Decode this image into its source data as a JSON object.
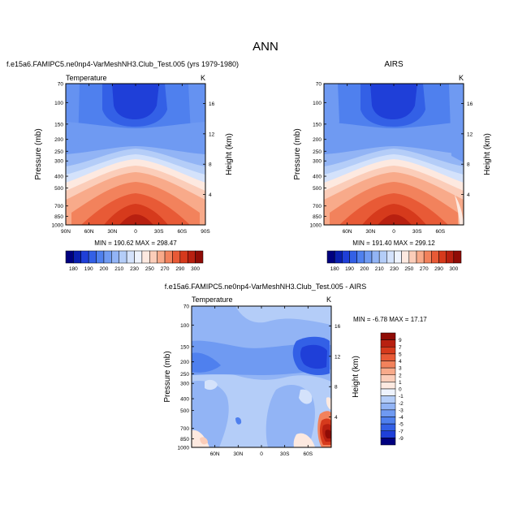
{
  "figure": {
    "title": "ANN"
  },
  "chart_data": [
    {
      "type": "heatmap",
      "title": "f.e15a6.FAMIPC5.ne0np4-VarMeshNH3.Club_Test.005 (yrs 1979-1980)",
      "left_label": "Temperature",
      "right_label": "K",
      "ylabel": "Pressure (mb)",
      "ylabel_right": "Height (km)",
      "x_ticks": [
        "90N",
        "60N",
        "30N",
        "0",
        "30S",
        "60S",
        "90S"
      ],
      "y_ticks": [
        "70",
        "100",
        "150",
        "200",
        "250",
        "300",
        "400",
        "500",
        "700",
        "850",
        "1000"
      ],
      "y_ticks_right": [
        "16",
        "12",
        "8",
        "4"
      ],
      "stats": "MIN = 190.62  MAX = 298.47",
      "min": 190.62,
      "max": 298.47
    },
    {
      "type": "heatmap",
      "title": "AIRS",
      "left_label": "",
      "right_label": "K",
      "ylabel": "Pressure (mb)",
      "ylabel_right": "Height (km)",
      "x_ticks": [
        "60N",
        "30N",
        "0",
        "30S",
        "60S"
      ],
      "y_ticks": [
        "70",
        "100",
        "150",
        "200",
        "250",
        "300",
        "400",
        "500",
        "700",
        "850",
        "1000"
      ],
      "y_ticks_right": [
        "16",
        "12",
        "8",
        "4"
      ],
      "stats": "MIN = 191.40  MAX = 299.12",
      "min": 191.4,
      "max": 299.12
    },
    {
      "type": "heatmap",
      "title": "f.e15a6.FAMIPC5.ne0np4-VarMeshNH3.Club_Test.005 - AIRS",
      "left_label": "Temperature",
      "right_label": "K",
      "ylabel": "Pressure (mb)",
      "ylabel_right": "Height (km)",
      "x_ticks": [
        "60N",
        "30N",
        "0",
        "30S",
        "60S"
      ],
      "y_ticks": [
        "70",
        "100",
        "150",
        "200",
        "250",
        "300",
        "400",
        "500",
        "700",
        "850",
        "1000"
      ],
      "y_ticks_right": [
        "16",
        "12",
        "8",
        "4"
      ],
      "stats": "MIN = -6.78  MAX = 17.17",
      "min": -6.78,
      "max": 17.17
    }
  ],
  "colorbar_abs": {
    "labels": [
      "180",
      "190",
      "200",
      "210",
      "230",
      "250",
      "270",
      "290",
      "300"
    ],
    "colors": [
      "#00007f",
      "#0a1fb0",
      "#1f3fd8",
      "#3360e6",
      "#4f80ee",
      "#6f9af2",
      "#92b4f5",
      "#b4cdf8",
      "#d4e2fb",
      "#eef3fd",
      "#fde9e0",
      "#fbcdb9",
      "#f8aa8a",
      "#f2825c",
      "#e85a36",
      "#d63a1c",
      "#b82010",
      "#8f0c06"
    ]
  },
  "colorbar_diff": {
    "labels": [
      "9",
      "7",
      "5",
      "4",
      "3",
      "2",
      "1",
      "0",
      "-1",
      "-2",
      "-3",
      "-4",
      "-5",
      "-7",
      "-9"
    ],
    "colors": [
      "#8f0c06",
      "#b82010",
      "#d63a1c",
      "#e85a36",
      "#f2825c",
      "#f8aa8a",
      "#fbcdb9",
      "#fde9e0",
      "#eef3fd",
      "#b4cdf8",
      "#92b4f5",
      "#6f9af2",
      "#4f80ee",
      "#3360e6",
      "#1f3fd8",
      "#00007f"
    ]
  }
}
